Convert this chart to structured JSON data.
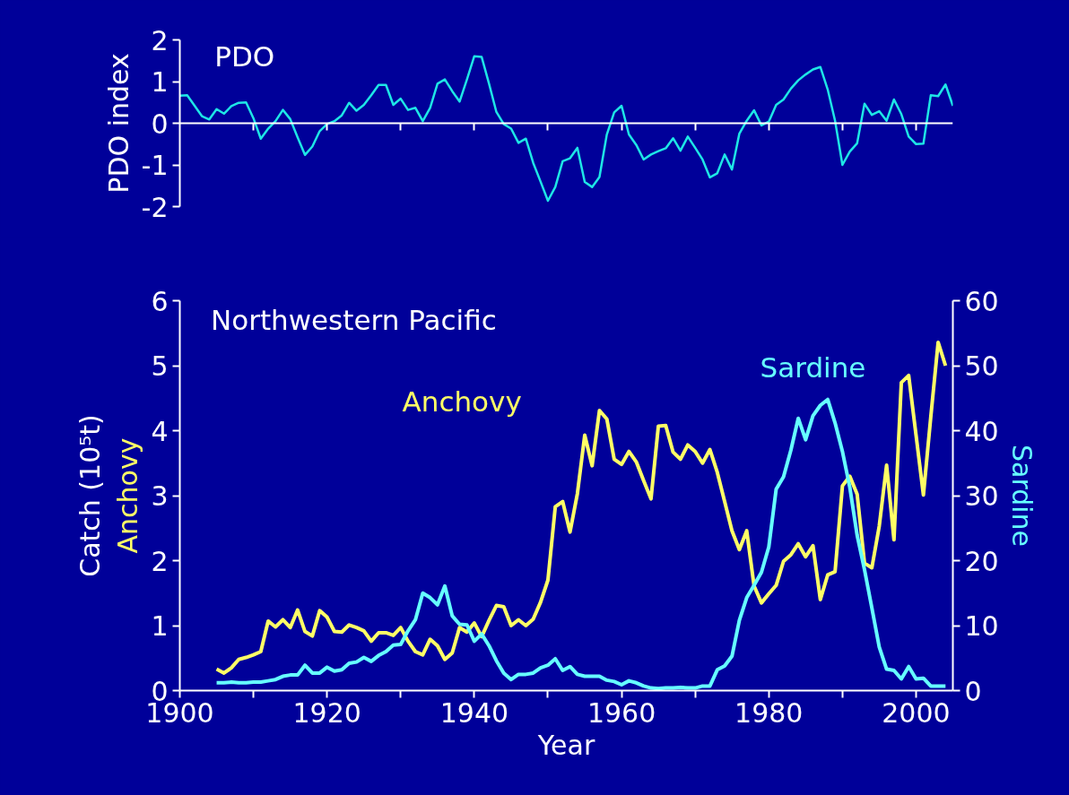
{
  "chart_data": [
    {
      "type": "line",
      "title": "PDO",
      "ylabel": "PDO index",
      "color": "#1ee6e6",
      "x": [
        1900,
        1901,
        1903,
        1904,
        1905,
        1906,
        1907,
        1908,
        1909,
        1910,
        1911,
        1912,
        1913,
        1914,
        1915,
        1916,
        1917,
        1918,
        1919,
        1920,
        1921,
        1922,
        1923,
        1924,
        1925,
        1926,
        1927,
        1928,
        1929,
        1930,
        1931,
        1932,
        1933,
        1934,
        1935,
        1936,
        1937,
        1938,
        1939,
        1940,
        1941,
        1942,
        1943,
        1944,
        1945,
        1946,
        1947,
        1948,
        1949,
        1950,
        1951,
        1952,
        1953,
        1954,
        1955,
        1956,
        1957,
        1958,
        1959,
        1960,
        1961,
        1962,
        1963,
        1964,
        1965,
        1966,
        1967,
        1968,
        1969,
        1970,
        1971,
        1972,
        1973,
        1974,
        1975,
        1976,
        1977,
        1978,
        1979,
        1980,
        1981,
        1982,
        1983,
        1984,
        1985,
        1986,
        1987,
        1988,
        1989,
        1990,
        1991,
        1992,
        1993,
        1994,
        1995,
        1996,
        1997,
        1998,
        1999,
        2000,
        2001,
        2002,
        2003,
        2004,
        2005
      ],
      "values": [
        0.66,
        0.67,
        0.17,
        0.09,
        0.34,
        0.23,
        0.41,
        0.49,
        0.5,
        0.12,
        -0.37,
        -0.13,
        0.05,
        0.32,
        0.1,
        -0.34,
        -0.76,
        -0.56,
        -0.19,
        -0.02,
        0.05,
        0.19,
        0.49,
        0.3,
        0.44,
        0.67,
        0.92,
        0.92,
        0.44,
        0.59,
        0.32,
        0.37,
        0.05,
        0.37,
        0.95,
        1.05,
        0.77,
        0.52,
        1.05,
        1.61,
        1.59,
        0.95,
        0.27,
        -0.02,
        -0.13,
        -0.47,
        -0.37,
        -0.95,
        -1.4,
        -1.86,
        -1.53,
        -0.91,
        -0.84,
        -0.59,
        -1.41,
        -1.53,
        -1.29,
        -0.27,
        0.26,
        0.42,
        -0.27,
        -0.52,
        -0.87,
        -0.75,
        -0.67,
        -0.6,
        -0.36,
        -0.66,
        -0.32,
        -0.59,
        -0.87,
        -1.3,
        -1.2,
        -0.75,
        -1.11,
        -0.25,
        0.06,
        0.31,
        -0.05,
        0.04,
        0.44,
        0.57,
        0.83,
        1.03,
        1.17,
        1.29,
        1.35,
        0.81,
        0.06,
        -1.0,
        -0.68,
        -0.48,
        0.47,
        0.2,
        0.29,
        0.06,
        0.57,
        0.22,
        -0.32,
        -0.5,
        -0.49,
        0.67,
        0.65,
        0.93,
        0.42
      ],
      "xlim": [
        1900,
        2005
      ],
      "ylim": [
        -2,
        2
      ],
      "yticks": [
        -2,
        -1,
        0,
        1,
        2
      ],
      "xticks": [
        {
          "value": 1910,
          "label": null
        },
        {
          "value": 1920,
          "label": null
        },
        {
          "value": 1930,
          "label": null
        },
        {
          "value": 1940,
          "label": null
        },
        {
          "value": 1950,
          "label": null
        },
        {
          "value": 1960,
          "label": null
        },
        {
          "value": 1970,
          "label": null
        },
        {
          "value": 1980,
          "label": null
        },
        {
          "value": 1990,
          "label": null
        },
        {
          "value": 2000,
          "label": null
        }
      ],
      "tick_labels": "y"
    },
    {
      "type": "line",
      "title": "Northwestern Pacific",
      "xlabel": "Year",
      "ylabel": "Catch (10⁵t)",
      "y2label": "Sardine",
      "x": [
        1905,
        1906,
        1907,
        1908,
        1909,
        1910,
        1911,
        1912,
        1913,
        1914,
        1915,
        1916,
        1917,
        1918,
        1919,
        1920,
        1921,
        1922,
        1923,
        1924,
        1925,
        1926,
        1927,
        1928,
        1929,
        1930,
        1931,
        1932,
        1933,
        1934,
        1935,
        1936,
        1937,
        1938,
        1939,
        1940,
        1941,
        1942,
        1943,
        1944,
        1945,
        1946,
        1947,
        1948,
        1949,
        1950,
        1951,
        1952,
        1953,
        1954,
        1955,
        1956,
        1957,
        1958,
        1959,
        1960,
        1961,
        1962,
        1963,
        1964,
        1965,
        1966,
        1967,
        1968,
        1969,
        1970,
        1971,
        1972,
        1973,
        1974,
        1975,
        1976,
        1977,
        1978,
        1979,
        1980,
        1981,
        1982,
        1983,
        1984,
        1985,
        1986,
        1987,
        1988,
        1989,
        1990,
        1991,
        1992,
        1993,
        1994,
        1995,
        1996,
        1997,
        1998,
        1999,
        2000,
        2001,
        2002,
        2003,
        2004
      ],
      "series": [
        {
          "name": "Anchovy",
          "color": "#ffff66",
          "values": [
            0.33,
            0.27,
            0.35,
            0.48,
            0.51,
            0.55,
            0.6,
            1.07,
            0.98,
            1.09,
            0.97,
            1.24,
            0.91,
            0.84,
            1.23,
            1.13,
            0.91,
            0.9,
            1.01,
            0.97,
            0.92,
            0.76,
            0.89,
            0.89,
            0.85,
            0.97,
            0.76,
            0.6,
            0.55,
            0.79,
            0.69,
            0.48,
            0.58,
            0.97,
            0.9,
            1.04,
            0.83,
            1.08,
            1.31,
            1.29,
            1.0,
            1.09,
            1.0,
            1.1,
            1.36,
            1.7,
            2.83,
            2.91,
            2.44,
            3.03,
            3.93,
            3.46,
            4.31,
            4.18,
            3.56,
            3.48,
            3.68,
            3.52,
            3.23,
            2.95,
            4.07,
            4.08,
            3.67,
            3.56,
            3.78,
            3.68,
            3.5,
            3.71,
            3.36,
            2.91,
            2.46,
            2.17,
            2.46,
            1.61,
            1.35,
            1.49,
            1.62,
            1.99,
            2.09,
            2.26,
            2.06,
            2.23,
            1.4,
            1.78,
            1.83,
            3.15,
            3.3,
            3.02,
            1.96,
            1.89,
            2.53,
            3.47,
            2.32,
            4.74,
            4.85,
            3.93,
            3.01,
            4.21,
            5.36,
            5.0
          ]
        },
        {
          "name": "Sardine",
          "color": "#66ffff",
          "axis": "y2",
          "values": [
            1.2,
            1.2,
            1.3,
            1.2,
            1.2,
            1.3,
            1.3,
            1.5,
            1.7,
            2.2,
            2.4,
            2.4,
            3.9,
            2.7,
            2.7,
            3.6,
            3.0,
            3.2,
            4.2,
            4.4,
            5.1,
            4.5,
            5.4,
            6.0,
            7.0,
            7.1,
            9.2,
            10.9,
            15.0,
            14.3,
            13.2,
            16.1,
            11.5,
            10.2,
            10.1,
            7.6,
            8.7,
            6.9,
            4.6,
            2.7,
            1.7,
            2.5,
            2.5,
            2.7,
            3.5,
            3.9,
            4.9,
            3.1,
            3.7,
            2.5,
            2.2,
            2.2,
            2.2,
            1.6,
            1.4,
            0.9,
            1.5,
            1.2,
            0.7,
            0.4,
            0.3,
            0.4,
            0.4,
            0.5,
            0.4,
            0.4,
            0.7,
            0.7,
            3.2,
            3.8,
            5.3,
            10.8,
            14.3,
            16.2,
            18.2,
            22.1,
            31.0,
            32.9,
            37.0,
            41.9,
            38.6,
            42.3,
            43.9,
            44.8,
            41.2,
            36.8,
            31.3,
            23.9,
            18.6,
            12.7,
            6.7,
            3.3,
            3.1,
            1.8,
            3.7,
            1.8,
            1.9,
            0.7,
            0.7,
            0.7
          ]
        }
      ],
      "xlim": [
        1900,
        2005
      ],
      "ylim": [
        0,
        6
      ],
      "yticks": [
        0,
        1,
        2,
        3,
        4,
        5,
        6
      ],
      "y2lim": [
        0,
        60
      ],
      "y2ticks": [
        0,
        10,
        20,
        30,
        40,
        50,
        60
      ],
      "xticks": [
        1900,
        {
          "value": 1910,
          "label": null
        },
        1920,
        {
          "value": 1930,
          "label": null
        },
        1940,
        {
          "value": 1950,
          "label": null
        },
        1960,
        {
          "value": 1970,
          "label": null
        },
        1980,
        {
          "value": 1990,
          "label": null
        },
        2000
      ]
    }
  ]
}
